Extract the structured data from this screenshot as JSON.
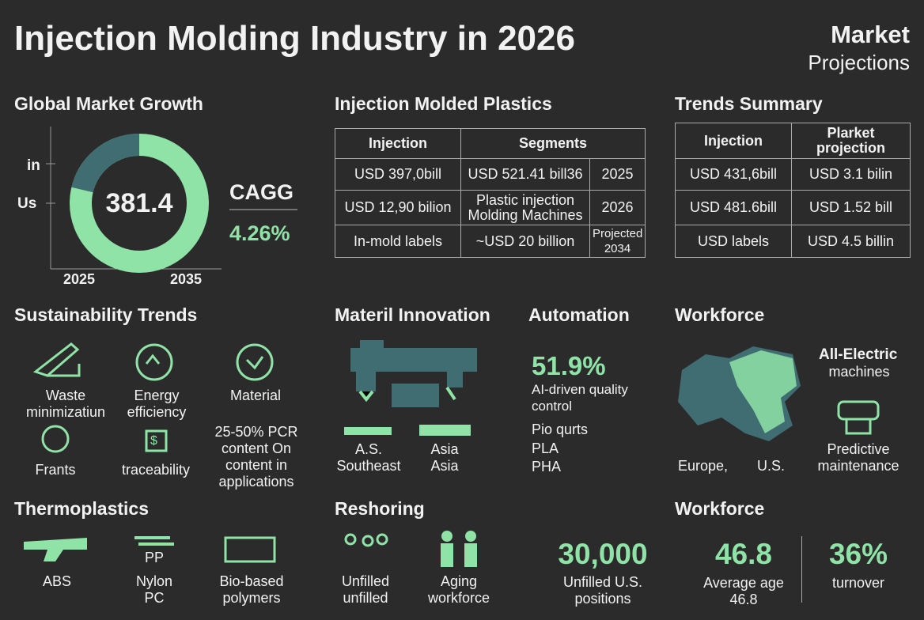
{
  "header": {
    "title": "Injection Molding Industry in 2026",
    "tag_bold": "Market",
    "tag": "Projections"
  },
  "market_growth": {
    "title": "Global Market Growth",
    "axis_labels": [
      "in",
      "Us"
    ],
    "center": "381.4",
    "x_labels": [
      "2025",
      "2035"
    ],
    "cagr_label": "CAGG",
    "cagr": "4.26%"
  },
  "plastics": {
    "title": "Injection Molded Plastics",
    "header": [
      "Injection",
      "Segments"
    ],
    "rows": [
      [
        "USD 397,0bill",
        "USD 521.41 bill36",
        "2025"
      ],
      [
        "USD 12,90 bilion",
        "Plastic injection Molding Machines",
        "2026"
      ],
      [
        "In-mold labels",
        "~USD 20 billion",
        "Projected 2034"
      ]
    ]
  },
  "trends": {
    "title": "Trends Summary",
    "header": [
      "Injection",
      "Plarket projection"
    ],
    "rows": [
      [
        "USD 431,6bill",
        "USD 3.1 bilin"
      ],
      [
        "USD 481.6bill",
        "USD 1.52 bill"
      ],
      [
        "USD labels",
        "USD 4.5 billin"
      ]
    ]
  },
  "sustainability": {
    "title": "Sustainability Trends",
    "items": [
      "Waste minimizatiun",
      "Energy efficiency",
      "Material",
      "Frants",
      "traceability"
    ],
    "note": "25-50% PCR content On content in applications"
  },
  "material": {
    "title": "Materil Innovation",
    "items": [
      "A.S. Southeast",
      "Asia Asia"
    ]
  },
  "automation": {
    "title": "Automation",
    "stat": "51.9%",
    "stat_label": "AI-driven quality control",
    "list": [
      "Pio qurts",
      "PLA",
      "PHA"
    ]
  },
  "workforce_map": {
    "title": "Workforce",
    "label_bold": "All-Electric",
    "label": "machines",
    "map_labels": [
      "Europe,",
      "U.S."
    ],
    "icon_label": "Predictive maintenance"
  },
  "thermoplastics": {
    "title": "Thermoplastics",
    "items": [
      "ABS",
      "PP",
      "Nylon PC",
      "Bio-based polymers"
    ]
  },
  "reshoring": {
    "title": "Reshoring",
    "items": [
      "Unfilled unfilled",
      "Aging workforce"
    ],
    "stat": "30,000",
    "stat_label": "Unfilled U.S. positions"
  },
  "workforce": {
    "title": "Workforce",
    "stats": [
      {
        "value": "46.8",
        "label": "Average age 46.8"
      },
      {
        "value": "36%",
        "label": "turnover"
      }
    ]
  }
}
